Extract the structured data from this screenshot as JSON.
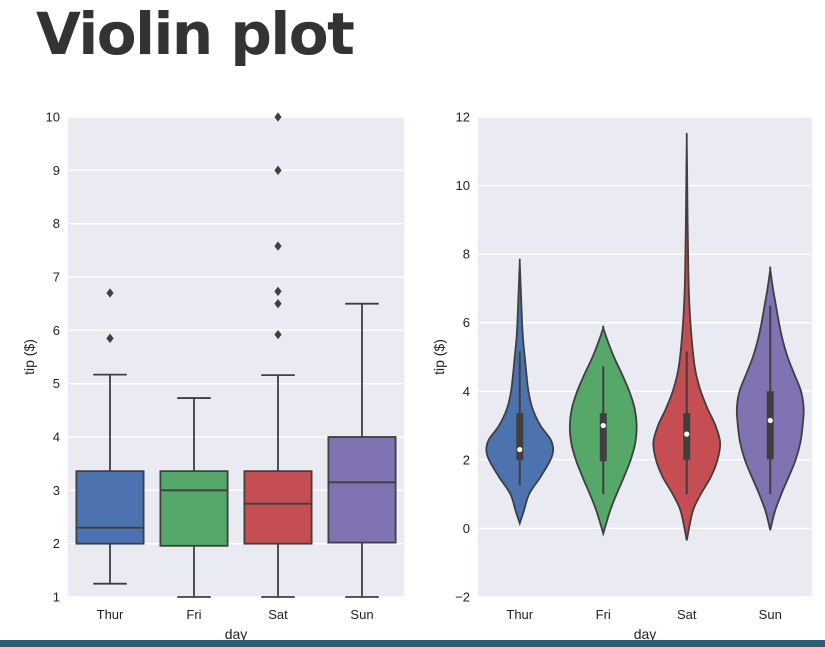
{
  "slide": {
    "title": "Violin plot"
  },
  "chart_data": [
    {
      "type": "box",
      "xlabel": "day",
      "ylabel": "tip ($)",
      "ylim": [
        1,
        10
      ],
      "yticks": [
        1,
        2,
        3,
        4,
        5,
        6,
        7,
        8,
        9,
        10
      ],
      "categories": [
        "Thur",
        "Fri",
        "Sat",
        "Sun"
      ],
      "colors": [
        "#4c72b0",
        "#55a868",
        "#c44e52",
        "#8172b2"
      ],
      "background": "#eaeaf2",
      "grid": true,
      "boxes": [
        {
          "whislo": 1.25,
          "q1": 2.0,
          "median": 2.3,
          "q3": 3.36,
          "whishi": 5.17,
          "fliers": [
            5.85,
            6.7
          ]
        },
        {
          "whislo": 1.0,
          "q1": 1.96,
          "median": 3.0,
          "q3": 3.36,
          "whishi": 4.73,
          "fliers": []
        },
        {
          "whislo": 1.0,
          "q1": 2.0,
          "median": 2.75,
          "q3": 3.36,
          "whishi": 5.16,
          "fliers": [
            5.92,
            6.5,
            6.73,
            7.58,
            9.0,
            10.0
          ]
        },
        {
          "whislo": 1.0,
          "q1": 2.02,
          "median": 3.15,
          "q3": 4.0,
          "whishi": 6.5,
          "fliers": []
        }
      ]
    },
    {
      "type": "violin",
      "xlabel": "day",
      "ylabel": "tip ($)",
      "ylim": [
        -2,
        12
      ],
      "yticks": [
        -2,
        0,
        2,
        4,
        6,
        8,
        10,
        12
      ],
      "categories": [
        "Thur",
        "Fri",
        "Sat",
        "Sun"
      ],
      "colors": [
        "#4c72b0",
        "#55a868",
        "#c44e52",
        "#8172b2"
      ],
      "background": "#eaeaf2",
      "grid": true,
      "violins": [
        {
          "min": 0.15,
          "max": 7.75,
          "q1": 2.0,
          "median": 2.3,
          "q3": 3.36,
          "whislo": 1.25,
          "whishi": 5.17,
          "profile": [
            [
              0.15,
              0.0
            ],
            [
              0.5,
              0.12
            ],
            [
              1.0,
              0.28
            ],
            [
              1.5,
              0.62
            ],
            [
              2.0,
              0.92
            ],
            [
              2.3,
              1.0
            ],
            [
              2.6,
              0.92
            ],
            [
              3.0,
              0.62
            ],
            [
              3.5,
              0.38
            ],
            [
              4.0,
              0.26
            ],
            [
              4.5,
              0.2
            ],
            [
              5.0,
              0.15
            ],
            [
              5.5,
              0.1
            ],
            [
              6.0,
              0.07
            ],
            [
              6.5,
              0.05
            ],
            [
              7.0,
              0.03
            ],
            [
              7.75,
              0.0
            ]
          ]
        },
        {
          "min": -0.15,
          "max": 5.85,
          "q1": 1.96,
          "median": 3.0,
          "q3": 3.36,
          "whislo": 1.0,
          "whishi": 4.73,
          "profile": [
            [
              -0.15,
              0.0
            ],
            [
              0.5,
              0.2
            ],
            [
              1.0,
              0.4
            ],
            [
              1.5,
              0.62
            ],
            [
              2.0,
              0.82
            ],
            [
              2.5,
              0.96
            ],
            [
              3.0,
              1.0
            ],
            [
              3.5,
              0.94
            ],
            [
              4.0,
              0.78
            ],
            [
              4.5,
              0.56
            ],
            [
              5.0,
              0.32
            ],
            [
              5.5,
              0.12
            ],
            [
              5.85,
              0.0
            ]
          ]
        },
        {
          "min": -0.35,
          "max": 11.35,
          "q1": 2.0,
          "median": 2.75,
          "q3": 3.36,
          "whislo": 1.0,
          "whishi": 5.16,
          "profile": [
            [
              -0.35,
              0.0
            ],
            [
              0.5,
              0.18
            ],
            [
              1.0,
              0.42
            ],
            [
              1.5,
              0.72
            ],
            [
              2.0,
              0.92
            ],
            [
              2.5,
              1.0
            ],
            [
              3.0,
              0.86
            ],
            [
              3.5,
              0.62
            ],
            [
              4.0,
              0.42
            ],
            [
              4.5,
              0.28
            ],
            [
              5.0,
              0.2
            ],
            [
              6.0,
              0.11
            ],
            [
              7.0,
              0.06
            ],
            [
              8.0,
              0.04
            ],
            [
              9.0,
              0.025
            ],
            [
              10.0,
              0.015
            ],
            [
              11.35,
              0.0
            ]
          ]
        },
        {
          "min": -0.05,
          "max": 7.55,
          "q1": 2.02,
          "median": 3.15,
          "q3": 4.0,
          "whislo": 1.0,
          "whishi": 6.5,
          "profile": [
            [
              -0.05,
              0.0
            ],
            [
              0.5,
              0.14
            ],
            [
              1.0,
              0.33
            ],
            [
              1.5,
              0.55
            ],
            [
              2.0,
              0.76
            ],
            [
              2.5,
              0.9
            ],
            [
              3.0,
              0.97
            ],
            [
              3.5,
              1.0
            ],
            [
              4.0,
              0.92
            ],
            [
              4.5,
              0.72
            ],
            [
              5.0,
              0.52
            ],
            [
              5.5,
              0.37
            ],
            [
              6.0,
              0.26
            ],
            [
              6.5,
              0.17
            ],
            [
              7.0,
              0.08
            ],
            [
              7.55,
              0.0
            ]
          ]
        }
      ]
    }
  ]
}
